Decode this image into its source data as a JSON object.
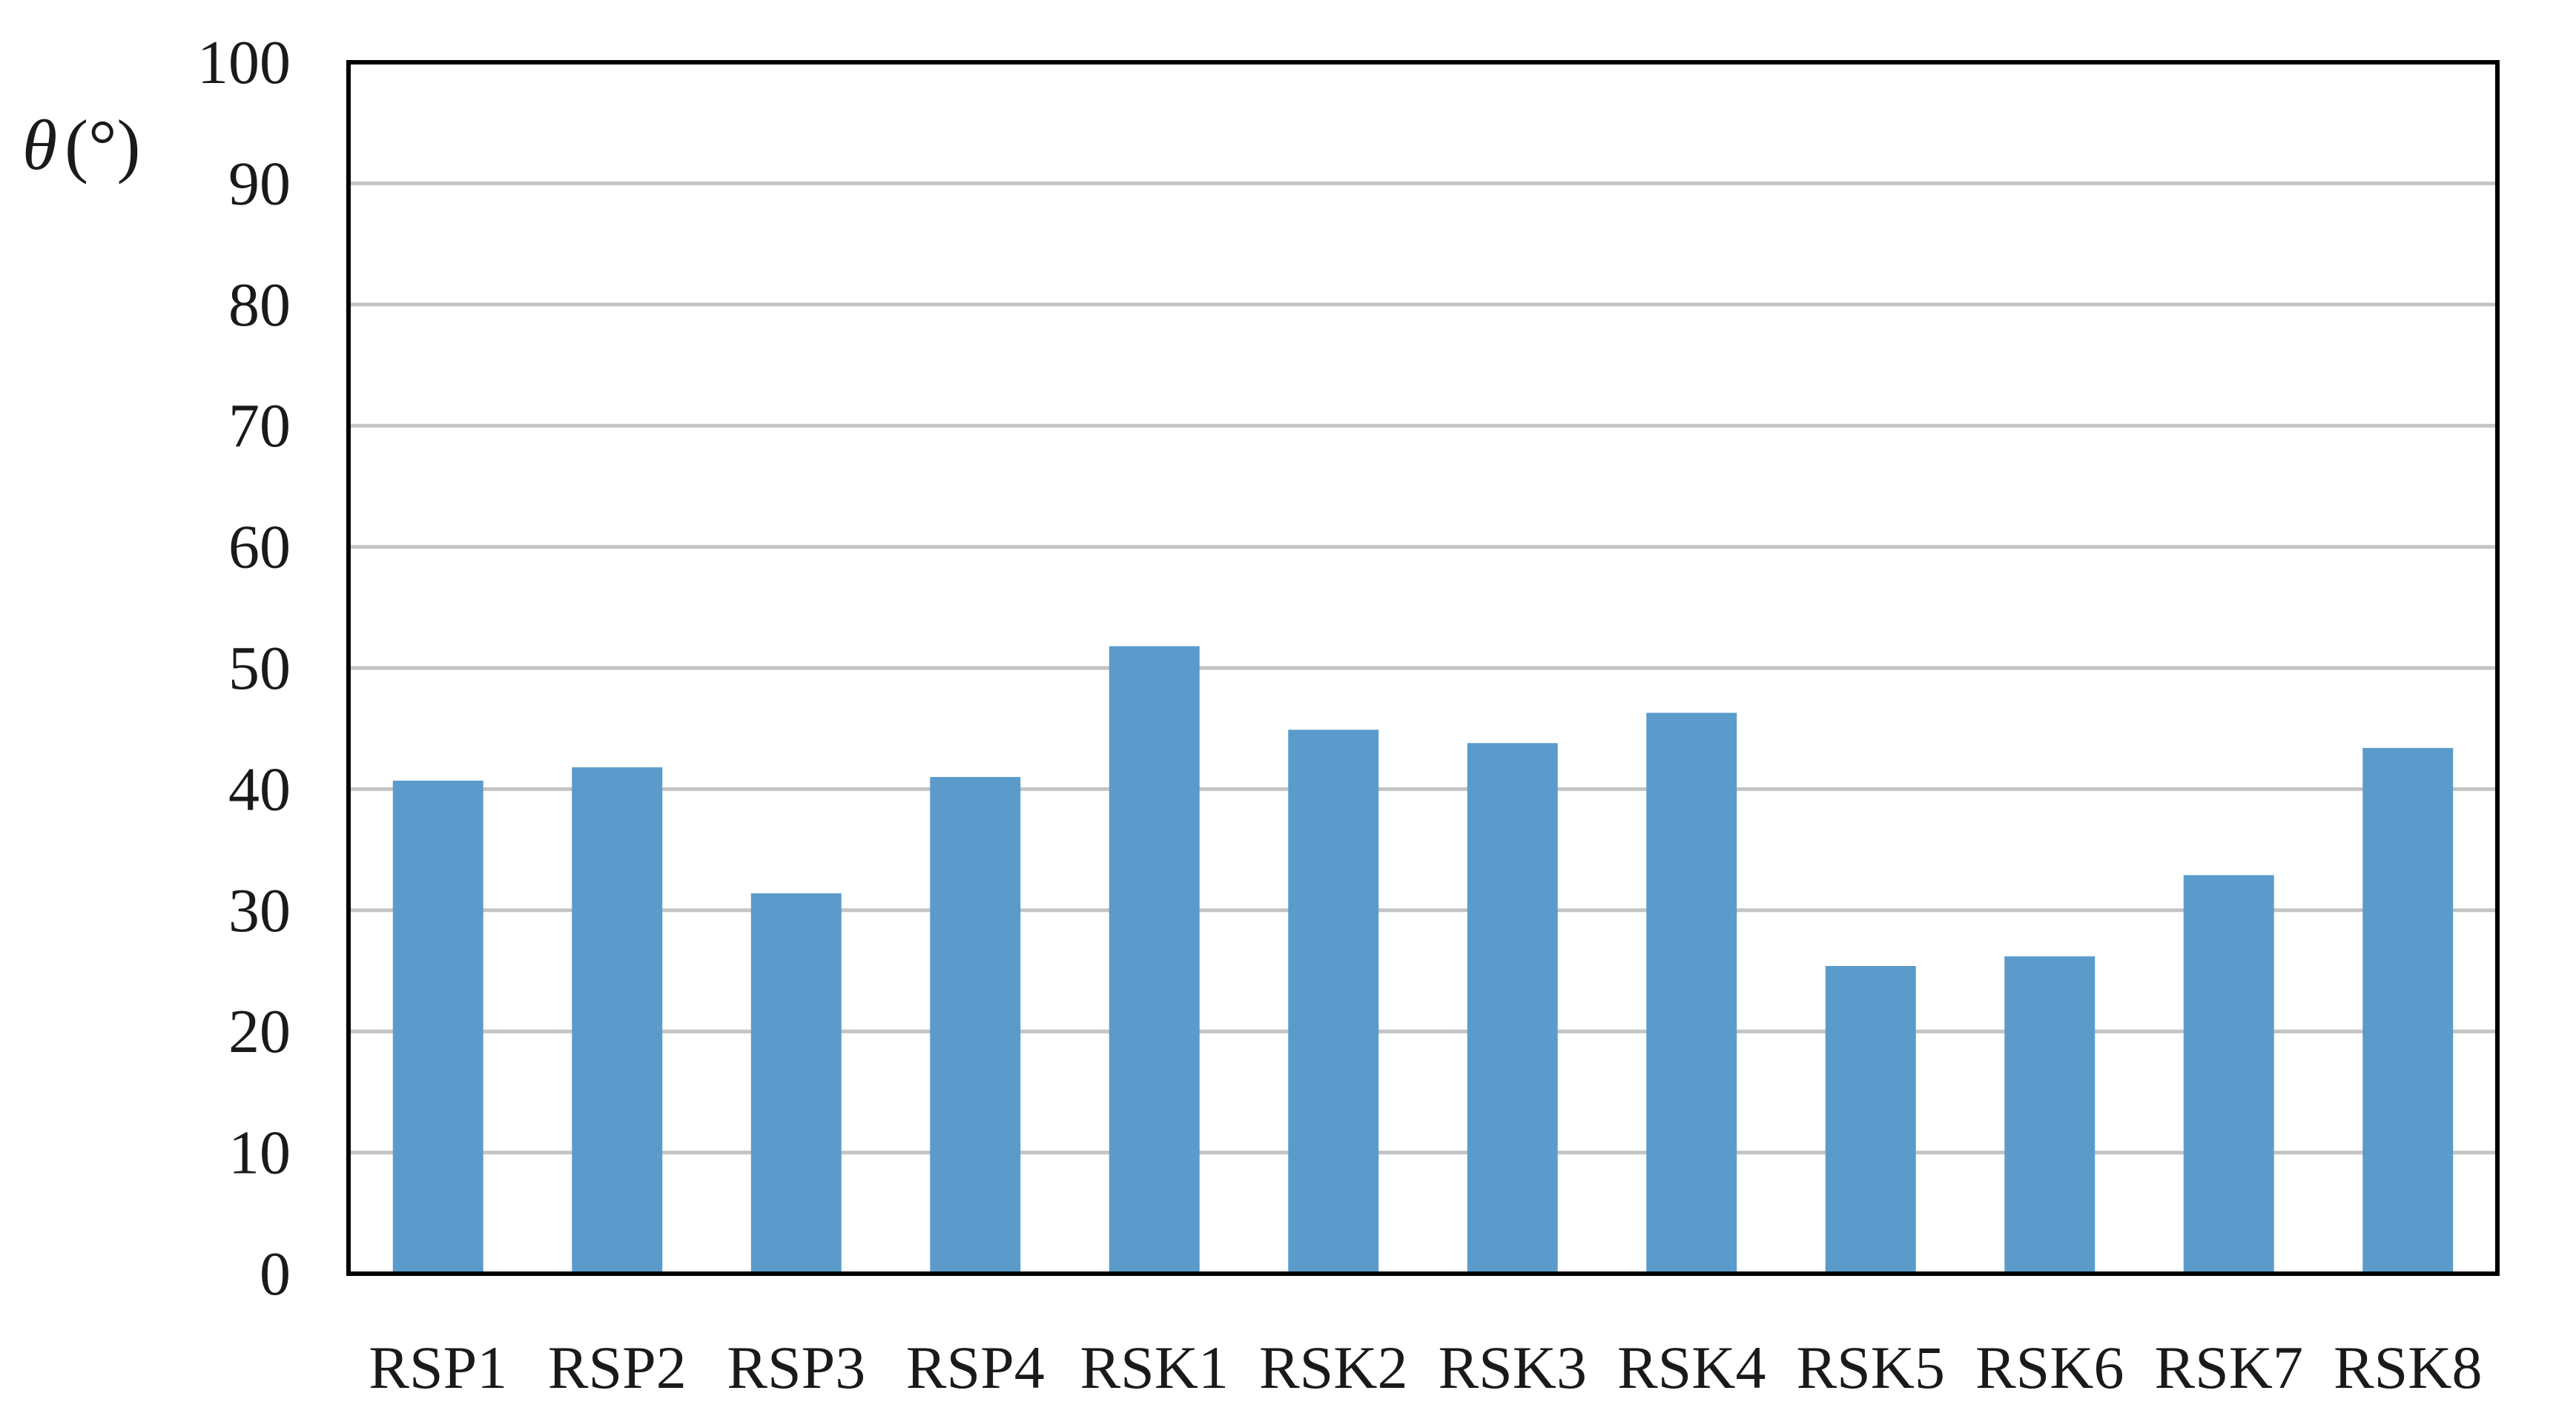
{
  "chart_data": {
    "type": "bar",
    "categories": [
      "RSP1",
      "RSP2",
      "RSP3",
      "RSP4",
      "RSK1",
      "RSK2",
      "RSK3",
      "RSK4",
      "RSK5",
      "RSK6",
      "RSK7",
      "RSK8"
    ],
    "series": [
      {
        "values": [
          40.7,
          41.8,
          31.4,
          41.0,
          51.8,
          44.9,
          43.8,
          46.3,
          25.4,
          26.2,
          32.9,
          43.4
        ],
        "color": "#5b9bcb"
      }
    ],
    "ylabel": {
      "symbol": "θ",
      "unit": "(°)"
    },
    "ylim": [
      0,
      100
    ],
    "yticks": [
      "0",
      "10",
      "20",
      "30",
      "40",
      "50",
      "60",
      "70",
      "80",
      "90",
      "100"
    ],
    "grid": true,
    "legend": "none"
  }
}
